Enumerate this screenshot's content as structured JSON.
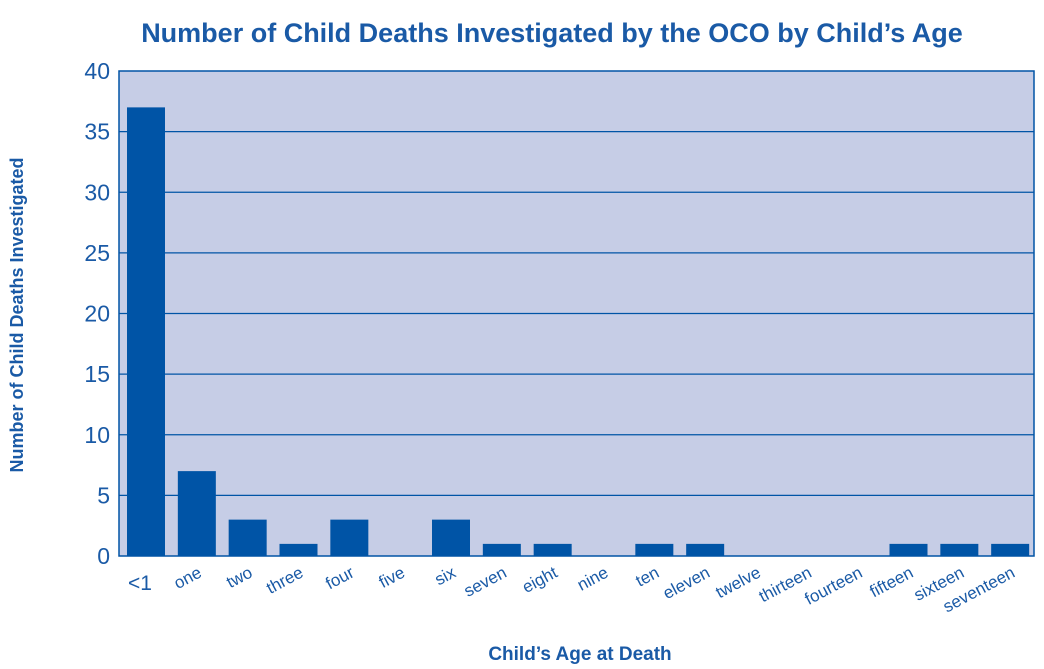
{
  "chart_data": {
    "type": "bar",
    "title": "Number of Child Deaths Investigated by the OCO by Child’s Age",
    "xlabel": "Child’s Age at Death",
    "ylabel": "Number of Child Deaths Investigated",
    "categories": [
      "<1",
      "one",
      "two",
      "three",
      "four",
      "five",
      "six",
      "seven",
      "eight",
      "nine",
      "ten",
      "eleven",
      "twelve",
      "thirteen",
      "fourteen",
      "fifteen",
      "sixteen",
      "seventeen"
    ],
    "values": [
      37,
      7,
      3,
      1,
      3,
      0,
      3,
      1,
      1,
      0,
      1,
      1,
      0,
      0,
      0,
      1,
      1,
      1
    ],
    "ylim": [
      0,
      40
    ],
    "yticks": [
      0,
      5,
      10,
      15,
      20,
      25,
      30,
      35,
      40
    ],
    "grid": true,
    "legend": "none"
  },
  "colors": {
    "text": "#1a5aa6",
    "plot_background": "#c6cde6",
    "bar": "#0054a6",
    "grid": "#0054a6"
  }
}
